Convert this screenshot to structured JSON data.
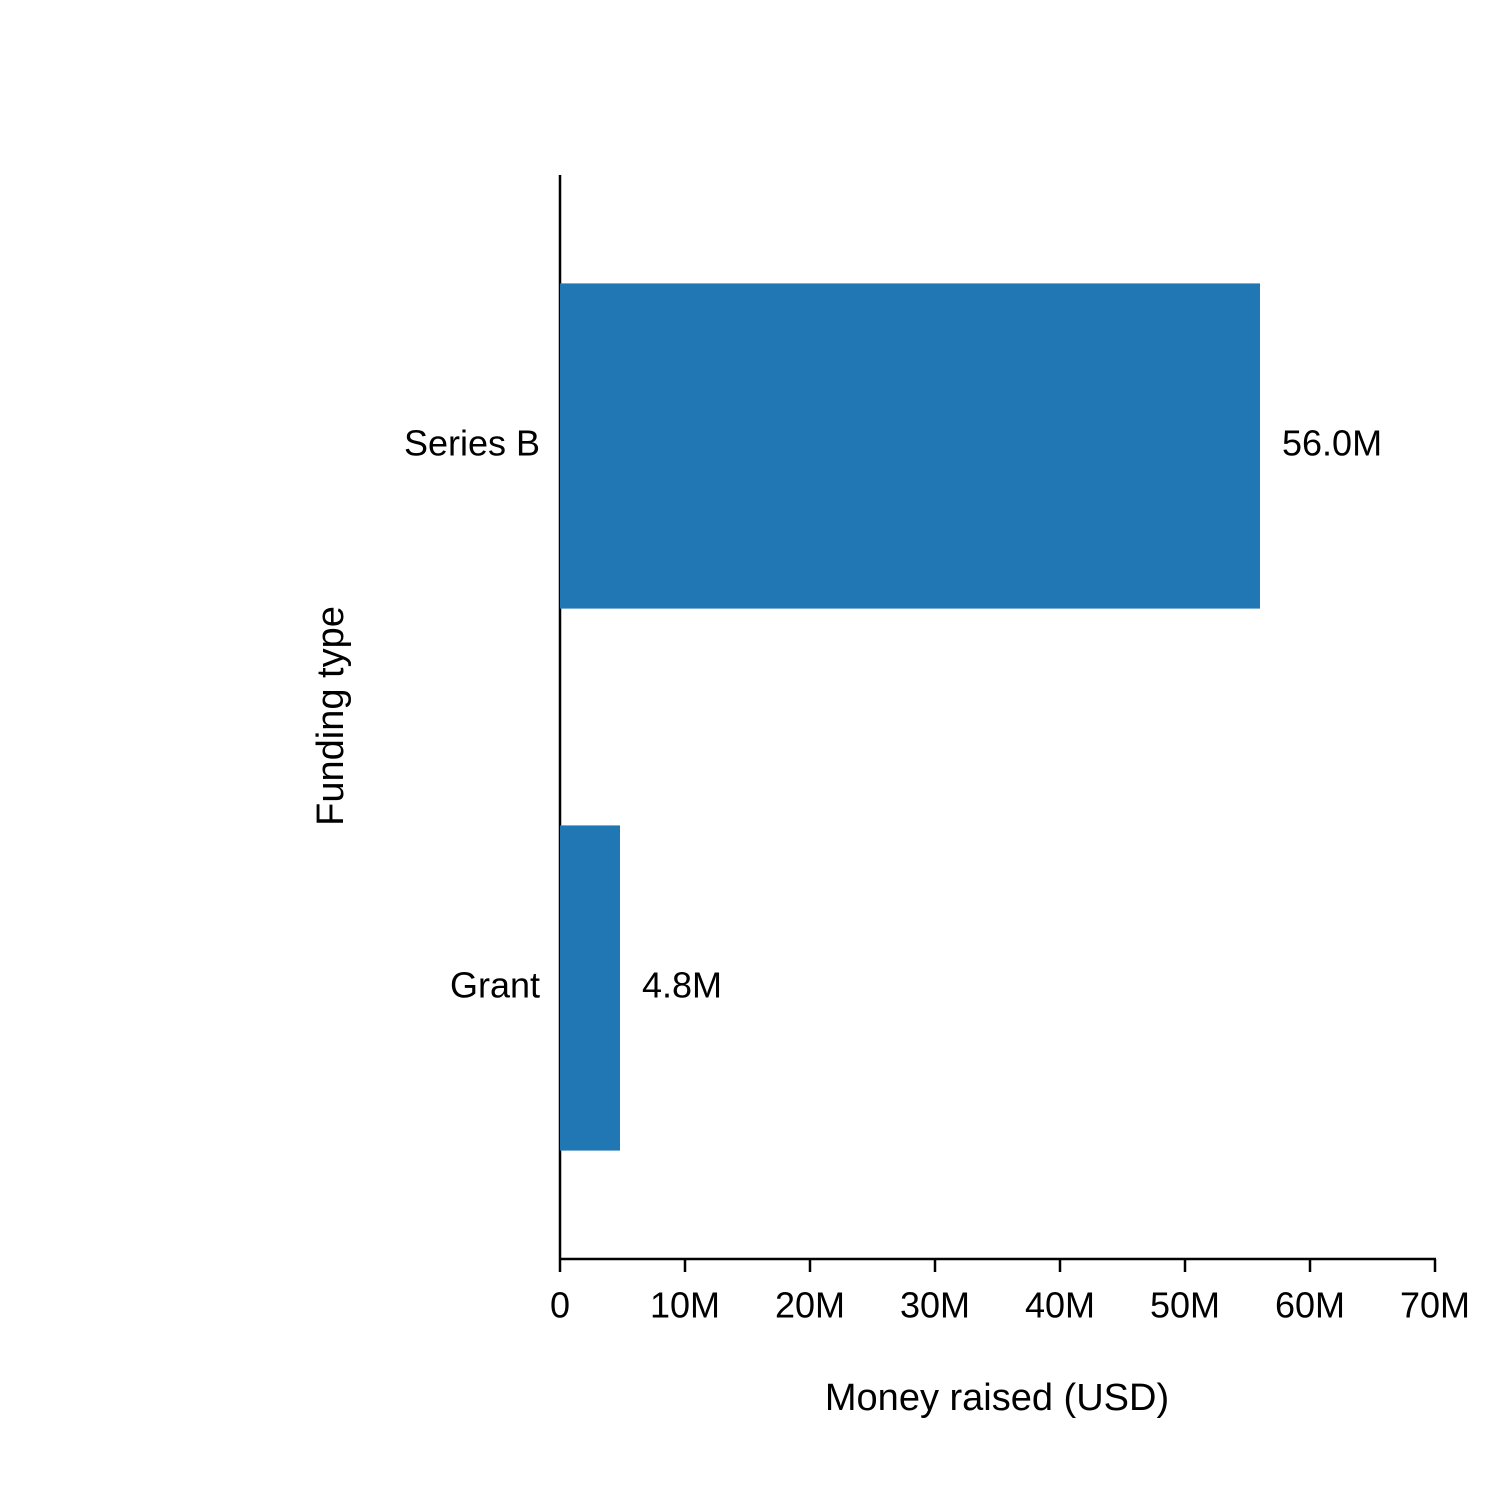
{
  "chart_data": {
    "type": "bar",
    "orientation": "horizontal",
    "x_label": "Money raised (USD)",
    "y_label": "Funding type",
    "categories": [
      "Series B",
      "Grant"
    ],
    "values": [
      56000000,
      4800000
    ],
    "value_labels": [
      "56.0M",
      "4.8M"
    ],
    "color": "#2177b4",
    "xlim": [
      0,
      70000000
    ],
    "xticks": [
      0,
      {
        "value": 10000000,
        "label": "10M"
      },
      {
        "value": 20000000,
        "label": "20M"
      },
      {
        "value": 30000000,
        "label": "30M"
      },
      {
        "value": 40000000,
        "label": "40M"
      },
      {
        "value": 50000000,
        "label": "50M"
      },
      {
        "value": 60000000,
        "label": "60M"
      },
      {
        "value": 70000000,
        "label": "70M"
      }
    ],
    "grid": false
  }
}
